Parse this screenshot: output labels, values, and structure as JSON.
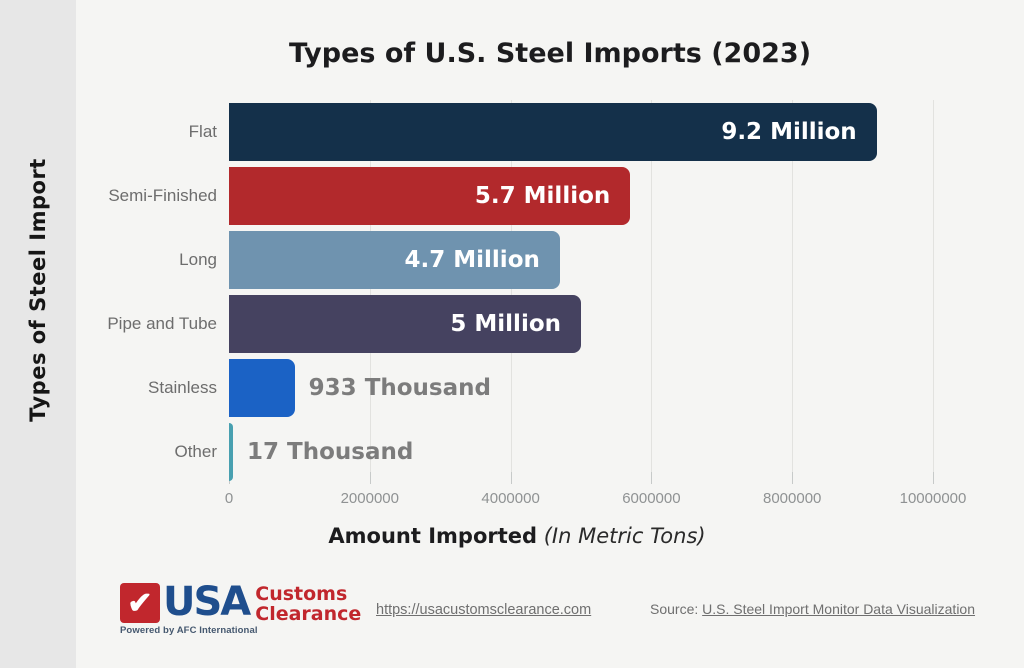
{
  "sidebar": {
    "vertical_label": "Types of Steel Import"
  },
  "header": {
    "title": "Types of U.S. Steel Imports (2023)"
  },
  "xaxis": {
    "bold": "Amount Imported",
    "italic": "(In Metric Tons)"
  },
  "chart_data": {
    "type": "bar",
    "orientation": "horizontal",
    "title": "Types of U.S. Steel Imports (2023)",
    "xlabel": "Amount Imported (In Metric Tons)",
    "ylabel": "Types of Steel Import",
    "categories": [
      "Flat",
      "Semi-Finished",
      "Long",
      "Pipe and Tube",
      "Stainless",
      "Other"
    ],
    "values": [
      9200000,
      5700000,
      4700000,
      5000000,
      933000,
      17000
    ],
    "value_labels": [
      "9.2 Million",
      "5.7 Million",
      "4.7 Million",
      "5 Million",
      "933 Thousand",
      "17 Thousand"
    ],
    "label_inside": [
      true,
      true,
      true,
      true,
      false,
      false
    ],
    "bar_colors": [
      "#14304a",
      "#b2292c",
      "#6f93af",
      "#454260",
      "#1b62c5",
      "#48a0b0"
    ],
    "xlim": [
      0,
      10000000
    ],
    "x_ticks": [
      0,
      2000000,
      4000000,
      6000000,
      8000000,
      10000000
    ],
    "x_tick_labels": [
      "0",
      "2000000",
      "4000000",
      "6000000",
      "8000000",
      "10000000"
    ],
    "grid": "vertical",
    "legend": "none"
  },
  "footer": {
    "logo": {
      "check_icon": "✔",
      "usa": "USA",
      "customs": "Customs",
      "clearance": "Clearance",
      "powered_by": "Powered by AFC International",
      "red": "#c1272d",
      "blue": "#1f4e8d"
    },
    "website_url": "https://usacustomsclearance.com",
    "source_prefix": "Source: ",
    "source_link_text": "U.S. Steel Import Monitor Data Visualization"
  },
  "colors": {
    "page_bg": "#f5f5f3",
    "sidebar_bg": "#e7e7e7",
    "gridline": "#e2e2df",
    "tick": "#c7cac9",
    "tick_text": "#8f9293",
    "category_text": "#6d6d6d",
    "value_outside_text": "#7c7c7c",
    "title_text": "#1c1c1e",
    "link_text": "#6f6f6f"
  }
}
